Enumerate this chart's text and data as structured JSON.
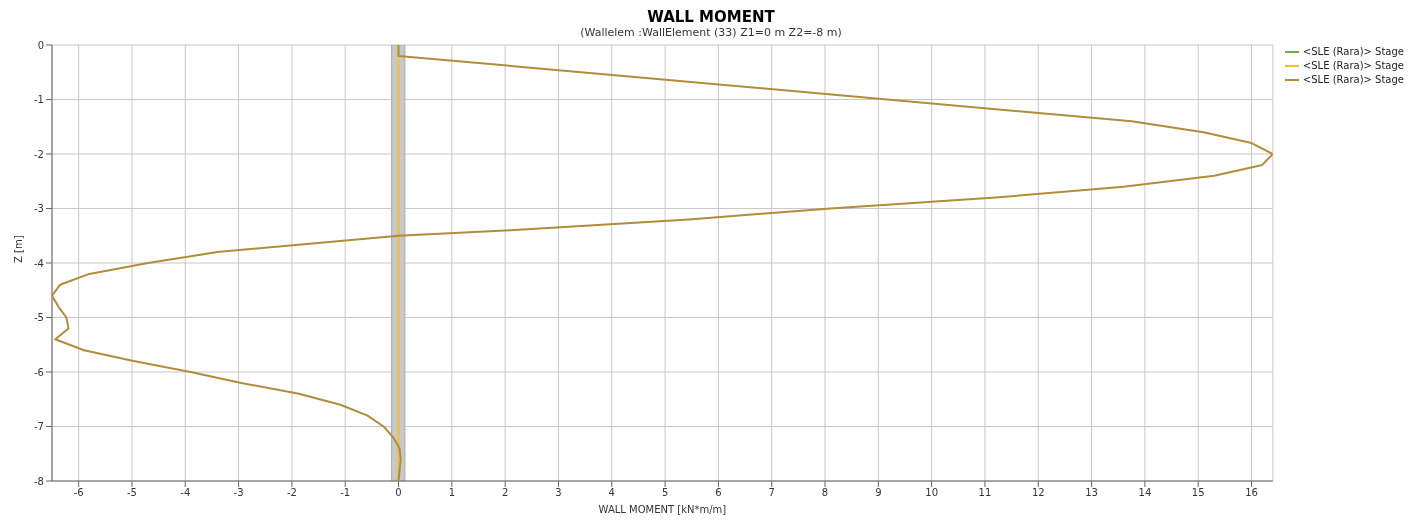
{
  "chart_data": {
    "type": "line",
    "title": "WALL MOMENT",
    "subtitle": "(Wallelem :WallElement (33) Z1=0 m Z2=-8 m)",
    "xlabel": "WALL MOMENT [kN*m/m]",
    "ylabel": "Z [m]",
    "xlim": [
      -6.5,
      16.4
    ],
    "xticks": [
      -6,
      -5,
      -4,
      -3,
      -2,
      -1,
      0,
      1,
      2,
      3,
      4,
      5,
      6,
      7,
      8,
      9,
      10,
      11,
      12,
      13,
      14,
      15,
      16
    ],
    "ylim": [
      -8,
      0
    ],
    "yticks": [
      0,
      -1,
      -2,
      -3,
      -4,
      -5,
      -6,
      -7,
      -8
    ],
    "grid": true,
    "legend": "top right",
    "marker": "none",
    "line_style": "solid",
    "bands": [
      {
        "axis": "x",
        "from": -0.13,
        "to": 0.12,
        "color": "#c8c8c8"
      }
    ],
    "series": [
      {
        "name": "<SLE (Rara)> Stage",
        "color": "#70ad47"
      },
      {
        "name": "<SLE (Rara)> Stage",
        "color": "#f0c030",
        "x": [
          0,
          0
        ],
        "values": [
          0,
          -8
        ]
      },
      {
        "name": "<SLE (Rara)> Stage",
        "color": "#b08d3a",
        "x": [
          0,
          0,
          13.75,
          15.1,
          16.0,
          16.4,
          16.2,
          15.3,
          13.6,
          11.2,
          8.1,
          5.45,
          2.1,
          0,
          -3.4,
          -4.7,
          -5.8,
          -6.35,
          -6.5,
          -6.38,
          -6.23,
          -6.19,
          -6.44,
          -5.9,
          -4.97,
          -3.9,
          -2.95,
          -1.87,
          -1.09,
          -0.58,
          -0.28,
          -0.1,
          0.02,
          0.04,
          0.02,
          0
        ],
        "values": [
          0,
          -0.2,
          -1.4,
          -1.6,
          -1.8,
          -2.0,
          -2.2,
          -2.4,
          -2.6,
          -2.8,
          -3.0,
          -3.2,
          -3.4,
          -3.5,
          -3.8,
          -4.0,
          -4.2,
          -4.4,
          -4.6,
          -4.8,
          -5.0,
          -5.2,
          -5.4,
          -5.6,
          -5.8,
          -6.0,
          -6.2,
          -6.4,
          -6.6,
          -6.8,
          -7.0,
          -7.2,
          -7.4,
          -7.6,
          -7.8,
          -8.0
        ]
      }
    ]
  }
}
